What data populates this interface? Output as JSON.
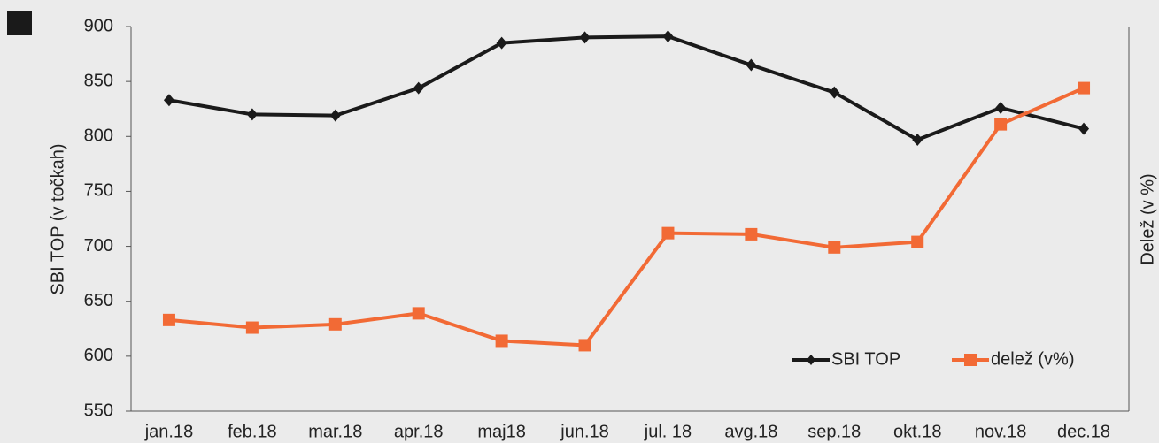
{
  "chart_data": {
    "type": "line",
    "categories": [
      "jan.18",
      "feb.18",
      "mar.18",
      "apr.18",
      "maj18",
      "jun.18",
      "jul. 18",
      "avg.18",
      "sep.18",
      "okt.18",
      "nov.18",
      "dec.18"
    ],
    "series": [
      {
        "name": "SBI TOP",
        "color": "#1a1a1a",
        "marker": "diamond",
        "values": [
          833,
          820,
          819,
          844,
          885,
          890,
          891,
          865,
          840,
          797,
          826,
          807
        ]
      },
      {
        "name": "delež (v%)",
        "color": "#f26a35",
        "marker": "square",
        "values": [
          633,
          626,
          629,
          639,
          614,
          610,
          712,
          711,
          699,
          704,
          811,
          844
        ]
      }
    ],
    "ylabel": "SBI TOP (v točkah)",
    "y2label": "Delež (v %)",
    "ylim": [
      550,
      900
    ],
    "yticks": [
      550,
      600,
      650,
      700,
      750,
      800,
      850,
      900
    ],
    "grid": false,
    "legend": "lower right"
  }
}
